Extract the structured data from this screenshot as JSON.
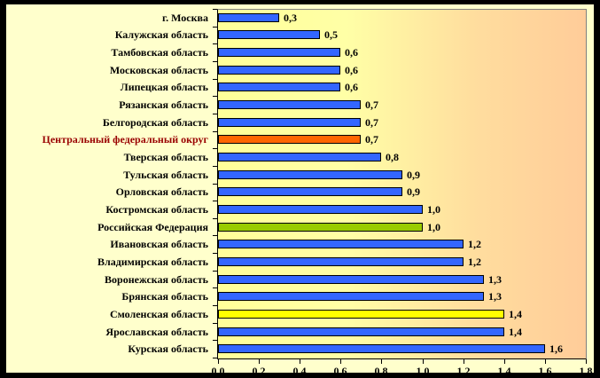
{
  "colors": {
    "frame": "#000000",
    "canvas_bg": "#FFFFCC",
    "plot_gradient_start": "#FFFF99",
    "plot_gradient_end": "#FFCC99",
    "plot_border": "#808080",
    "axis": "#000000",
    "bar_default": "#3366FF",
    "bar_highlight_orange": "#FF6600",
    "bar_highlight_green": "#99CC00",
    "bar_highlight_yellow": "#FFFF00",
    "label_default": "#000000",
    "label_highlight_red": "#990000"
  },
  "chart_data": {
    "type": "bar",
    "orientation": "horizontal",
    "title": "",
    "xlabel": "",
    "ylabel": "",
    "grid": false,
    "legend_position": "none",
    "xlim": [
      0,
      1.8
    ],
    "x_tick_labels": [
      "0,0",
      "0,2",
      "0,4",
      "0,6",
      "0,8",
      "1,0",
      "1,2",
      "1,4",
      "1,6",
      "1,8"
    ],
    "x_tick_values": [
      0.0,
      0.2,
      0.4,
      0.6,
      0.8,
      1.0,
      1.2,
      1.4,
      1.6,
      1.8
    ],
    "categories": [
      "г. Москва",
      "Калужская область",
      "Тамбовская область",
      "Московская область",
      "Липецкая область",
      "Рязанская область",
      "Белгородская область",
      "Центральный федеральный округ",
      "Тверская область",
      "Тульская область",
      "Орловская область",
      "Костромская область",
      "Российская Федерация",
      "Ивановская область",
      "Владимирская область",
      "Воронежская область",
      "Брянская область",
      "Смоленская область",
      "Ярославская область",
      "Курская область"
    ],
    "values": [
      0.3,
      0.5,
      0.6,
      0.6,
      0.6,
      0.7,
      0.7,
      0.7,
      0.8,
      0.9,
      0.9,
      1.0,
      1.0,
      1.2,
      1.2,
      1.3,
      1.3,
      1.4,
      1.4,
      1.6
    ],
    "value_labels": [
      "0,3",
      "0,5",
      "0,6",
      "0,6",
      "0,6",
      "0,7",
      "0,7",
      "0,7",
      "0,8",
      "0,9",
      "0,9",
      "1,0",
      "1,0",
      "1,2",
      "1,2",
      "1,3",
      "1,3",
      "1,4",
      "1,4",
      "1,6"
    ],
    "bar_colors": [
      "#3366FF",
      "#3366FF",
      "#3366FF",
      "#3366FF",
      "#3366FF",
      "#3366FF",
      "#3366FF",
      "#FF6600",
      "#3366FF",
      "#3366FF",
      "#3366FF",
      "#3366FF",
      "#99CC00",
      "#3366FF",
      "#3366FF",
      "#3366FF",
      "#3366FF",
      "#FFFF00",
      "#3366FF",
      "#3366FF"
    ],
    "label_colors": [
      "#000000",
      "#000000",
      "#000000",
      "#000000",
      "#000000",
      "#000000",
      "#000000",
      "#990000",
      "#000000",
      "#000000",
      "#000000",
      "#000000",
      "#000000",
      "#000000",
      "#000000",
      "#000000",
      "#000000",
      "#000000",
      "#000000",
      "#000000"
    ]
  }
}
